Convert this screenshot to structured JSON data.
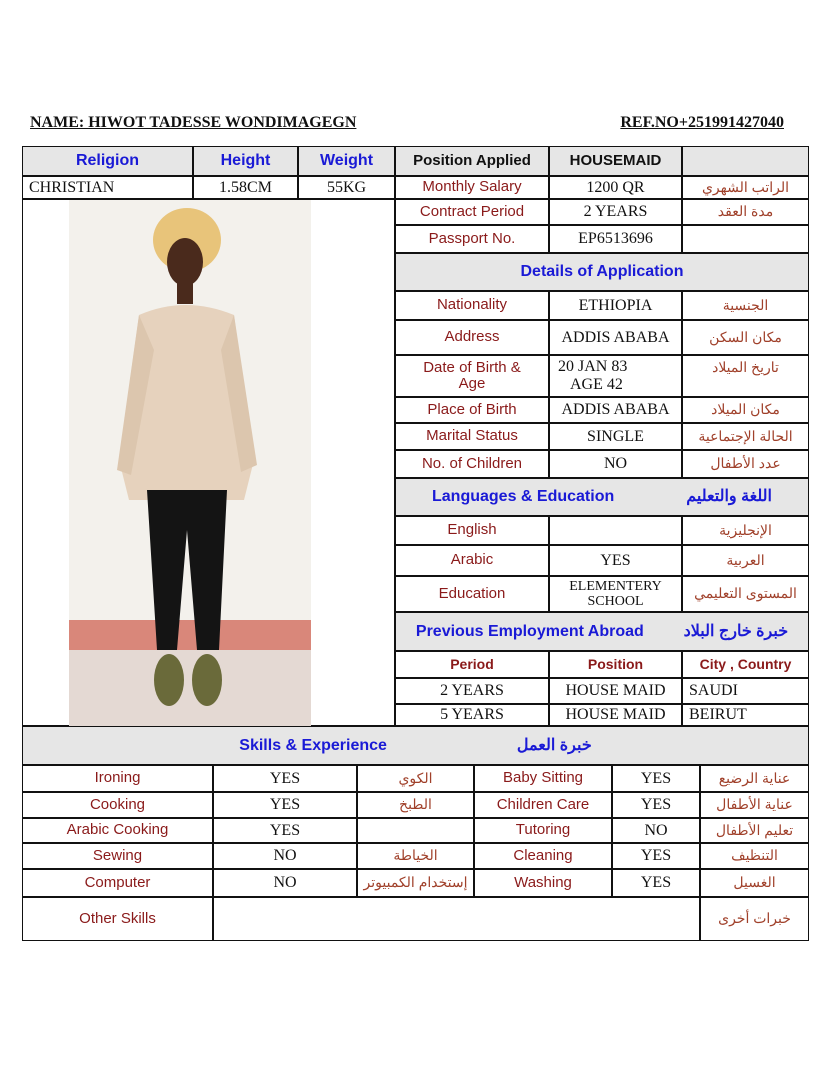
{
  "header": {
    "name": "NAME: HIWOT TADESSE WONDIMAGEGN",
    "ref": "REF.NO+251991427040"
  },
  "top": {
    "religion_label": "Religion",
    "height_label": "Height",
    "weight_label": "Weight",
    "position_label": "Position Applied",
    "position_value": "HOUSEMAID",
    "religion": "CHRISTIAN",
    "height": "1.58CM",
    "weight": "55KG"
  },
  "contract": {
    "salary_label": "Monthly Salary",
    "salary": "1200 QR",
    "salary_ar": "الراتب الشهري",
    "period_label": "Contract Period",
    "period": "2 YEARS",
    "period_ar": "مدة العقد",
    "passport_label": "Passport No.",
    "passport": "EP6513696"
  },
  "details": {
    "title": "Details of  Application",
    "nationality_label": "Nationality",
    "nationality": "ETHIOPIA",
    "nationality_ar": "الجنسية",
    "address_label": "Address",
    "address": "ADDIS ABABA",
    "address_ar": "مكان السكن",
    "dob_label": "Date of Birth & Age",
    "dob": "20 JAN 83",
    "age": "AGE  42",
    "dob_ar": "تاريخ الميلاد",
    "pob_label": "Place of Birth",
    "pob": "ADDIS ABABA",
    "pob_ar": "مكان الميلاد",
    "marital_label": "Marital Status",
    "marital": "SINGLE",
    "marital_ar": "الحالة الإجتماعية",
    "children_label": "No. of Children",
    "children": "NO",
    "children_ar": "عدد الأطفال"
  },
  "languages": {
    "title": "Languages & Education",
    "title_ar": "اللغة والتعليم",
    "english_label": "English",
    "english": "",
    "english_ar": "الإنجليزية",
    "arabic_label": "Arabic",
    "arabic": "YES",
    "arabic_ar": "العربية",
    "education_label": "Education",
    "education": "ELEMENTERY SCHOOL",
    "education_ar": "المستوى التعليمي"
  },
  "employment": {
    "title": "Previous Employment Abroad",
    "title_ar": "خبرة خارج البلاد",
    "columns": [
      "Period",
      "Position",
      "City  ,  Country"
    ],
    "rows": [
      [
        "2 YEARS",
        "HOUSE MAID",
        "SAUDI"
      ],
      [
        "5  YEARS",
        "HOUSE MAID",
        "BEIRUT"
      ]
    ]
  },
  "skills": {
    "title": "Skills & Experience",
    "title_ar": "خبرة العمل",
    "rows": [
      [
        "Ironing",
        "YES",
        "الكوي",
        "Baby Sitting",
        "YES",
        "عناية الرضيع"
      ],
      [
        "Cooking",
        "YES",
        "الطبخ",
        "Children Care",
        "YES",
        "عناية الأطفال"
      ],
      [
        "Arabic Cooking",
        "YES",
        "",
        "Tutoring",
        "NO",
        "تعليم الأطفال"
      ],
      [
        "Sewing",
        "NO",
        "الخياطة",
        "Cleaning",
        "YES",
        "التنظيف"
      ],
      [
        "Computer",
        "NO",
        "إستخدام الكمبيوتر",
        "Washing",
        "YES",
        "الغسيل"
      ]
    ],
    "other_label": "Other  Skills",
    "other": "",
    "other_ar": "خبرات أخرى"
  }
}
